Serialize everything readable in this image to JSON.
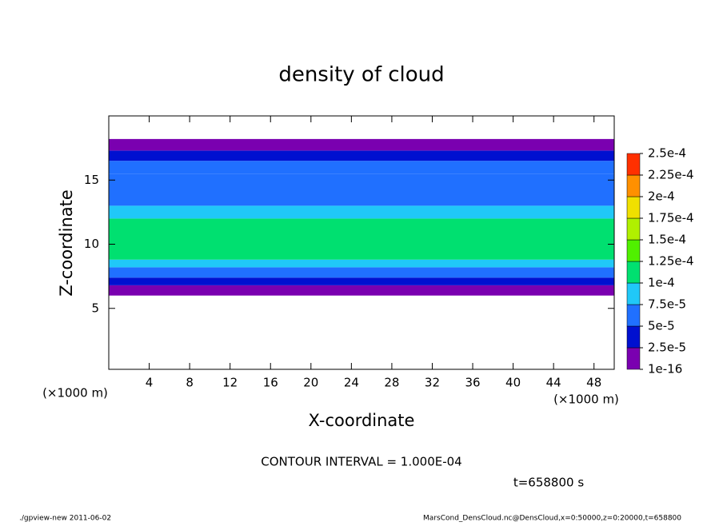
{
  "chart_data": {
    "type": "heatmap",
    "title": "density of cloud",
    "x_label": "X-coordinate",
    "y_label": "Z-coordinate",
    "x_unit": "(×1000 m)",
    "x_unit_right": "(×1000 m)",
    "contour_note": "CONTOUR INTERVAL = 1.000E-04",
    "time_note": "t=658800 s",
    "footer_left": "./gpview-new  2011-06-02",
    "footer_right": "MarsCond_DensCloud.nc@DensCloud,x=0:50000,z=0:20000,t=658800",
    "xlim": [
      0,
      50
    ],
    "xticks": [
      4,
      8,
      12,
      16,
      20,
      24,
      28,
      32,
      36,
      40,
      44,
      48
    ],
    "ylim": [
      0.25,
      20
    ],
    "yticks": [
      5,
      10,
      15
    ],
    "z_edges": [
      6.0,
      6.8,
      7.4,
      8.2,
      8.8,
      12.0,
      13.0,
      15.5,
      16.5,
      17.3,
      18.2
    ],
    "values": [
      1.2e-05,
      3e-05,
      6e-05,
      8.5e-05,
      0.00011,
      8.5e-05,
      7e-05,
      5.5e-05,
      3.5e-05,
      1.5e-05
    ],
    "colorbar_ticks": [
      {
        "value": 1e-16,
        "label": "1e-16"
      },
      {
        "value": 2.5e-05,
        "label": "2.5e-5"
      },
      {
        "value": 5e-05,
        "label": "5e-5"
      },
      {
        "value": 7.5e-05,
        "label": "7.5e-5"
      },
      {
        "value": 0.0001,
        "label": "1e-4"
      },
      {
        "value": 0.000125,
        "label": "1.25e-4"
      },
      {
        "value": 0.00015,
        "label": "1.5e-4"
      },
      {
        "value": 0.000175,
        "label": "1.75e-4"
      },
      {
        "value": 0.0002,
        "label": "2e-4"
      },
      {
        "value": 0.000225,
        "label": "2.25e-4"
      },
      {
        "value": 0.00025,
        "label": "2.5e-4"
      }
    ],
    "colors": [
      "#7a00b0",
      "#0010d0",
      "#2070ff",
      "#20c8f8",
      "#00e070",
      "#50f000",
      "#b0f000",
      "#f0e000",
      "#ff9000",
      "#ff3000"
    ]
  }
}
